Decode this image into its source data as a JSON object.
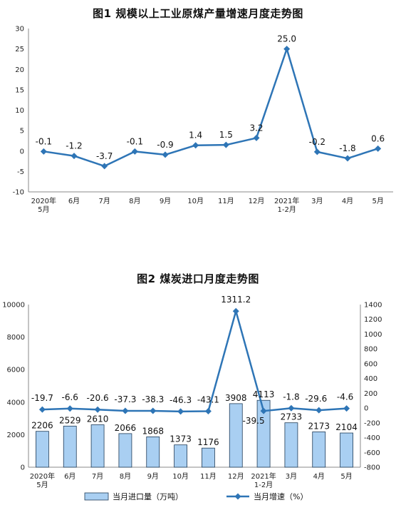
{
  "chart_data": [
    {
      "type": "line",
      "title": "图1  规模以上工业原煤产量增速月度走势图",
      "categories": [
        "2020年\n5月",
        "6月",
        "7月",
        "8月",
        "9月",
        "10月",
        "11月",
        "12月",
        "2021年\n1-2月",
        "3月",
        "4月",
        "5月"
      ],
      "series": [
        {
          "values": [
            -0.1,
            -1.2,
            -3.7,
            -0.1,
            -0.9,
            1.4,
            1.5,
            3.2,
            25.0,
            -0.2,
            -1.8,
            0.6
          ],
          "labels": [
            "-0.1",
            "-1.2",
            "-3.7",
            "-0.1",
            "-0.9",
            "1.4",
            "1.5",
            "3.2",
            "25.0",
            "-0.2",
            "-1.8",
            "0.6"
          ]
        }
      ],
      "ylim": [
        -10,
        30
      ],
      "yticks": [
        "-10",
        "-5",
        "0",
        "5",
        "10",
        "15",
        "20",
        "25",
        "30"
      ],
      "grid": false,
      "color": "#2e75b6"
    },
    {
      "type": "bar+line",
      "title": "图2  煤炭进口月度走势图",
      "categories": [
        "2020年\n5月",
        "6月",
        "7月",
        "8月",
        "9月",
        "10月",
        "11月",
        "12月",
        "2021年\n1-2月",
        "3月",
        "4月",
        "5月"
      ],
      "bar_series": {
        "name": "当月进口量（万吨）",
        "values": [
          2206,
          2529,
          2610,
          2066,
          1868,
          1373,
          1176,
          3908,
          4113,
          2733,
          2173,
          2104
        ],
        "labels": [
          "2206",
          "2529",
          "2610",
          "2066",
          "1868",
          "1373",
          "1176",
          "3908",
          "4113",
          "2733",
          "2173",
          "2104"
        ]
      },
      "line_series": {
        "name": "当月增速（%）",
        "values": [
          -19.7,
          -6.6,
          -20.6,
          -37.3,
          -38.3,
          -46.3,
          -43.1,
          1311.2,
          -39.5,
          -1.8,
          -29.6,
          -4.6
        ],
        "labels": [
          "-19.7",
          "-6.6",
          "-20.6",
          "-37.3",
          "-38.3",
          "-46.3",
          "-43.1",
          "1311.2",
          "-39.5",
          "-1.8",
          "-29.6",
          "-4.6"
        ]
      },
      "ylim_left": [
        0,
        10000
      ],
      "yticks_left": [
        "0",
        "2000",
        "4000",
        "6000",
        "8000",
        "10000"
      ],
      "ylim_right": [
        -800,
        1400
      ],
      "yticks_right": [
        "-800",
        "-600",
        "-400",
        "-200",
        "0",
        "200",
        "400",
        "600",
        "800",
        "1000",
        "1200",
        "1400"
      ],
      "legend_position": "bottom",
      "bar_color": "#a9cff2",
      "line_color": "#2e75b6"
    }
  ]
}
